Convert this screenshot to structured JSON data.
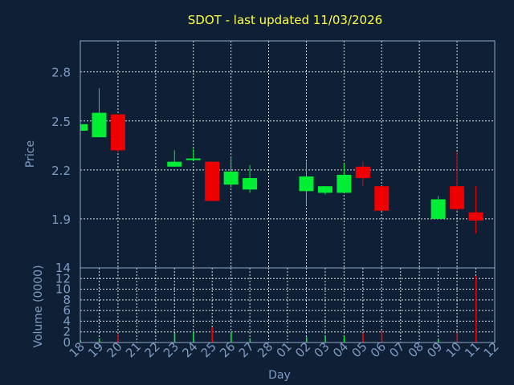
{
  "colors": {
    "background": "#0f2036",
    "plot_border": "#8fa8c8",
    "grid": "#ffffff",
    "title": "#ffff44",
    "axis_text": "#7f9cc4",
    "up": "#00ee33",
    "down": "#ee0000"
  },
  "chart_data": [
    {
      "type": "candlestick",
      "title": "SDOT - last updated 11/03/2026",
      "ylabel": "Price",
      "ylim": [
        1.6,
        2.99
      ],
      "yticks": [
        "1.9",
        "2.2",
        "2.5",
        "2.8"
      ],
      "grid": true,
      "x_labels": [
        "18",
        "19",
        "20",
        "21",
        "22",
        "23",
        "24",
        "25",
        "26",
        "27",
        "28",
        "01",
        "02",
        "03",
        "04",
        "05",
        "06",
        "07",
        "08",
        "09",
        "10",
        "11",
        "12"
      ],
      "candles": [
        {
          "x": "18",
          "open": 2.44,
          "high": 2.48,
          "low": 2.44,
          "close": 2.48
        },
        {
          "x": "19",
          "open": 2.4,
          "high": 2.7,
          "low": 2.4,
          "close": 2.55
        },
        {
          "x": "20",
          "open": 2.54,
          "high": 2.54,
          "low": 2.31,
          "close": 2.32
        },
        {
          "x": "23",
          "open": 2.22,
          "high": 2.32,
          "low": 2.22,
          "close": 2.25
        },
        {
          "x": "24",
          "open": 2.26,
          "high": 2.33,
          "low": 2.26,
          "close": 2.27
        },
        {
          "x": "25",
          "open": 2.25,
          "high": 2.25,
          "low": 2.01,
          "close": 2.01
        },
        {
          "x": "26",
          "open": 2.11,
          "high": 2.28,
          "low": 2.09,
          "close": 2.19
        },
        {
          "x": "27",
          "open": 2.08,
          "high": 2.23,
          "low": 2.06,
          "close": 2.15
        },
        {
          "x": "02",
          "open": 2.07,
          "high": 2.25,
          "low": 1.98,
          "close": 2.16
        },
        {
          "x": "03",
          "open": 2.06,
          "high": 2.1,
          "low": 2.05,
          "close": 2.1
        },
        {
          "x": "04",
          "open": 2.06,
          "high": 2.24,
          "low": 2.06,
          "close": 2.17
        },
        {
          "x": "05",
          "open": 2.22,
          "high": 2.25,
          "low": 2.1,
          "close": 2.15
        },
        {
          "x": "06",
          "open": 2.1,
          "high": 2.1,
          "low": 1.95,
          "close": 1.95
        },
        {
          "x": "09",
          "open": 1.9,
          "high": 2.04,
          "low": 1.9,
          "close": 2.02
        },
        {
          "x": "10",
          "open": 2.1,
          "high": 2.31,
          "low": 1.95,
          "close": 1.96
        },
        {
          "x": "11",
          "open": 1.94,
          "high": 2.1,
          "low": 1.81,
          "close": 1.89
        }
      ]
    },
    {
      "type": "bar",
      "ylabel": "Volume (0000)",
      "xlabel": "Day",
      "ylim": [
        0,
        14
      ],
      "yticks": [
        "0",
        "2",
        "4",
        "6",
        "8",
        "10",
        "12",
        "14"
      ],
      "grid": true,
      "categories": [
        "18",
        "19",
        "20",
        "23",
        "24",
        "25",
        "26",
        "27",
        "02",
        "03",
        "04",
        "05",
        "06",
        "09",
        "10",
        "11"
      ],
      "values": [
        0.4,
        0.8,
        1.5,
        1.8,
        2.0,
        2.8,
        2.0,
        0.8,
        1.0,
        1.2,
        1.2,
        1.8,
        2.2,
        0.6,
        1.8,
        12.5
      ],
      "colors": [
        "up",
        "up",
        "down",
        "up",
        "up",
        "down",
        "up",
        "up",
        "up",
        "up",
        "up",
        "down",
        "down",
        "up",
        "down",
        "down"
      ]
    }
  ]
}
